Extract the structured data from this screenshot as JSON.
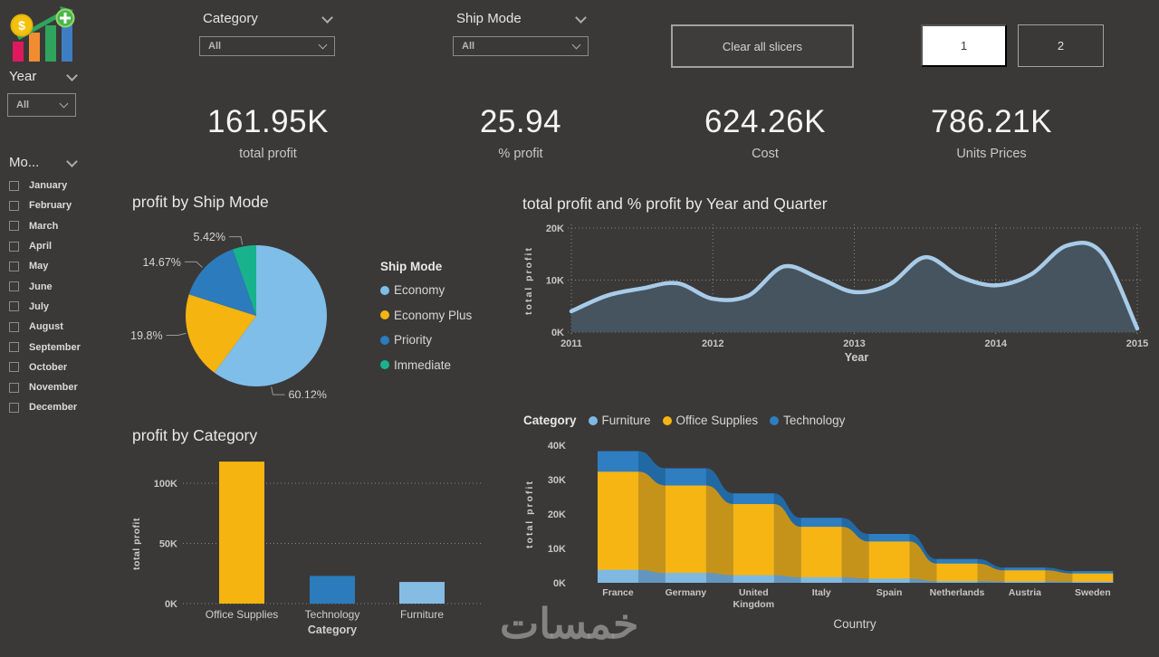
{
  "slicers": {
    "year": {
      "label": "Year",
      "value": "All"
    },
    "category": {
      "label": "Category",
      "value": "All"
    },
    "ship_mode": {
      "label": "Ship Mode",
      "value": "All"
    },
    "month": {
      "label": "Mo...",
      "options": [
        "January",
        "February",
        "March",
        "April",
        "May",
        "June",
        "July",
        "August",
        "September",
        "October",
        "November",
        "December"
      ]
    }
  },
  "toolbar": {
    "clear_button": "Clear all slicers",
    "pages": [
      "1",
      "2"
    ],
    "active_page": "1"
  },
  "kpis": [
    {
      "value": "161.95K",
      "label": "total profit"
    },
    {
      "value": "25.94",
      "label": "% profit"
    },
    {
      "value": "624.26K",
      "label": "Cost"
    },
    {
      "value": "786.21K",
      "label": "Units Prices"
    }
  ],
  "watermark": {
    "text": "خمسات"
  },
  "chart_data": [
    {
      "type": "pie",
      "title": "profit by Ship Mode",
      "legend_title": "Ship Mode",
      "legend_position": "right",
      "labels": [
        "Economy",
        "Economy Plus",
        "Priority",
        "Immediate"
      ],
      "values_pct": [
        60.12,
        19.8,
        14.67,
        5.42
      ],
      "value_labels": [
        "60.12%",
        "19.8%",
        "14.67%",
        "5.42%"
      ],
      "colors": [
        "#7FBEE9",
        "#F5B40F",
        "#2B7BBD",
        "#18B38C"
      ],
      "label_angles": [
        168,
        256,
        312,
        349
      ]
    },
    {
      "type": "area",
      "title": "total profit and % profit by Year and Quarter",
      "xlabel": "Year",
      "ylabel": "total profit",
      "x_ticks": [
        "2011",
        "2012",
        "2013",
        "2014",
        "2015"
      ],
      "x_unit": "quarter",
      "y_ticks": [
        "0K",
        "10K",
        "20K"
      ],
      "ylim_k": [
        0,
        20
      ],
      "values_k": [
        4.0,
        7.0,
        8.4,
        9.4,
        6.4,
        7.0,
        12.6,
        10.4,
        7.7,
        9.2,
        14.4,
        10.6,
        9.0,
        11.1,
        16.6,
        15.2,
        0.7
      ],
      "line_color": "#A8CBE8",
      "fill_color": "#46545F",
      "grid": true
    },
    {
      "type": "bar",
      "title": "profit by Category",
      "xlabel": "Category",
      "ylabel": "total profit",
      "categories": [
        "Office Supplies",
        "Technology",
        "Furniture"
      ],
      "values_k": [
        118,
        23,
        18
      ],
      "colors": [
        "#F5B40F",
        "#2B7BBD",
        "#85BCE4"
      ],
      "y_ticks": [
        "0K",
        "50K",
        "100K"
      ],
      "ylim_k": [
        0,
        130
      ],
      "grid": true
    },
    {
      "type": "area-stacked",
      "legend_title": "Category",
      "xlabel": "Country",
      "ylabel": "total profit",
      "categories": [
        "France",
        "Germany",
        "United Kingdom",
        "Italy",
        "Spain",
        "Netherlands",
        "Austria",
        "Sweden"
      ],
      "series": [
        {
          "name": "Furniture",
          "color": "#7FB9E2",
          "color_dim": "#6396BE",
          "values_k": [
            3.8,
            2.9,
            2.2,
            1.6,
            1.2,
            0.5,
            0.4,
            0.35
          ]
        },
        {
          "name": "Office Supplies",
          "color": "#F6B513",
          "color_dim": "#C6931A",
          "values_k": [
            28.5,
            25.4,
            20.7,
            14.7,
            10.8,
            5.1,
            3.2,
            2.35
          ]
        },
        {
          "name": "Technology",
          "color": "#2E7EC1",
          "color_dim": "#2269A4",
          "values_k": [
            6.0,
            5.0,
            3.1,
            2.6,
            2.2,
            1.3,
            0.8,
            0.7
          ]
        }
      ],
      "y_ticks": [
        "0K",
        "10K",
        "20K",
        "30K",
        "40K"
      ],
      "ylim_k": [
        0,
        40
      ]
    }
  ]
}
